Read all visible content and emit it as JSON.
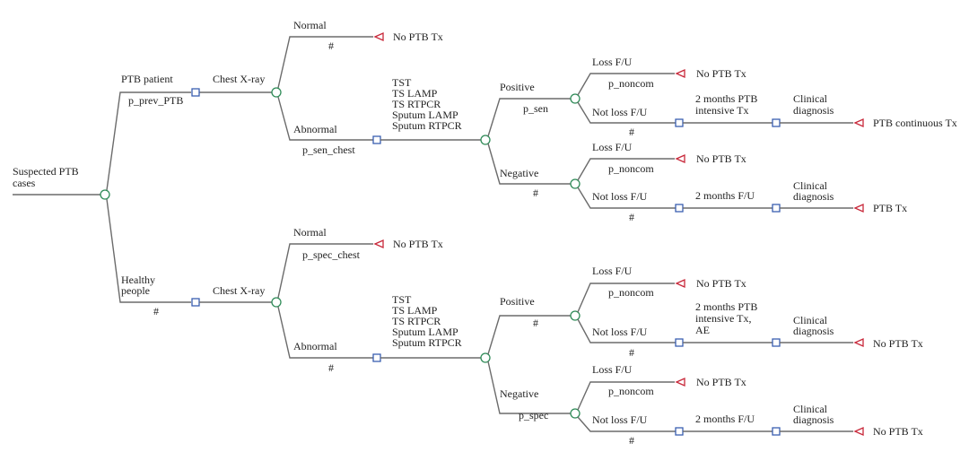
{
  "colors": {
    "chance_node": "#2e8b57",
    "decision_node": "#3a5fb0",
    "terminal_node": "#c8283a",
    "branch": "#6b6b6b"
  },
  "root": {
    "label": [
      "Suspected PTB",
      "cases"
    ]
  },
  "top": {
    "branch": "PTB patient",
    "prob": "p_prev_PTB",
    "step": "Chest X-ray",
    "normal": {
      "label": "Normal",
      "prob": "#",
      "outcome": "No PTB Tx"
    },
    "abnormal": {
      "label": "Abnormal",
      "prob": "p_sen_chest",
      "tests": [
        "TST",
        "TS LAMP",
        "TS RTPCR",
        "Sputum LAMP",
        "Sputum RTPCR"
      ]
    },
    "positive": {
      "label": "Positive",
      "prob": "p_sen",
      "loss": {
        "label": "Loss F/U",
        "prob": "p_noncom",
        "outcome": "No PTB Tx"
      },
      "notloss": {
        "label": "Not loss F/U",
        "prob": "#",
        "step1": [
          "2 months PTB",
          "intensive Tx"
        ],
        "step2": [
          "Clinical",
          "diagnosis"
        ],
        "outcome": "PTB continuous Tx"
      }
    },
    "negative": {
      "label": "Negative",
      "prob": "#",
      "loss": {
        "label": "Loss F/U",
        "prob": "p_noncom",
        "outcome": "No PTB Tx"
      },
      "notloss": {
        "label": "Not loss F/U",
        "prob": "#",
        "step1": "2 months F/U",
        "step2": [
          "Clinical",
          "diagnosis"
        ],
        "outcome": "PTB Tx"
      }
    }
  },
  "bottom": {
    "branch": [
      "Healthy",
      "people"
    ],
    "prob": "#",
    "step": "Chest X-ray",
    "normal": {
      "label": "Normal",
      "prob": "p_spec_chest",
      "outcome": "No PTB Tx"
    },
    "abnormal": {
      "label": "Abnormal",
      "prob": "#",
      "tests": [
        "TST",
        "TS LAMP",
        "TS RTPCR",
        "Sputum LAMP",
        "Sputum RTPCR"
      ]
    },
    "positive": {
      "label": "Positive",
      "prob": "#",
      "loss": {
        "label": "Loss F/U",
        "prob": "p_noncom",
        "outcome": "No PTB Tx"
      },
      "notloss": {
        "label": "Not loss F/U",
        "prob": "#",
        "step1": [
          "2 months PTB",
          "intensive Tx,",
          "AE"
        ],
        "step2": [
          "Clinical",
          "diagnosis"
        ],
        "outcome": "No PTB Tx"
      }
    },
    "negative": {
      "label": "Negative",
      "prob": "p_spec",
      "loss": {
        "label": "Loss F/U",
        "prob": "p_noncom",
        "outcome": "No PTB Tx"
      },
      "notloss": {
        "label": "Not loss F/U",
        "prob": "#",
        "step1": "2 months F/U",
        "step2": [
          "Clinical",
          "diagnosis"
        ],
        "outcome": "No PTB Tx"
      }
    }
  }
}
